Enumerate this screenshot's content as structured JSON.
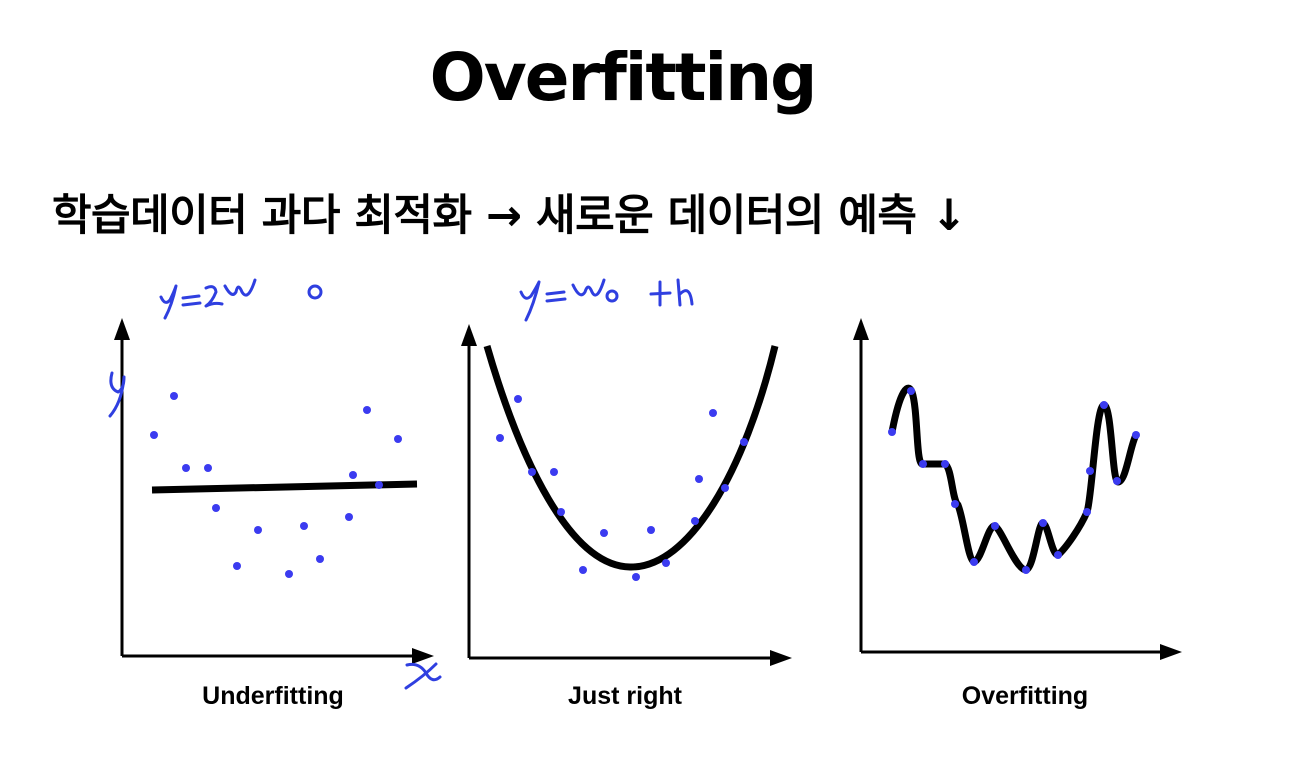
{
  "title": "Overfitting",
  "subtitle": "학습데이터 과다 최적화 → 새로운 데이터의 예측 ↓",
  "panels": [
    {
      "caption": "Underfitting",
      "annotations": [
        "y=w₀",
        "y",
        "x"
      ],
      "model": "horizontal line",
      "color_points": "#3b3bf0"
    },
    {
      "caption": "Just right",
      "annotations": [
        "y=w₀+h"
      ],
      "model": "quadratic curve",
      "color_points": "#3b3bf0"
    },
    {
      "caption": "Overfitting",
      "annotations": [],
      "model": "wiggly curve through all points",
      "color_points": "#3b3bf0"
    }
  ],
  "colors": {
    "ink": "#000000",
    "points": "#3b3bf0",
    "handwriting": "#2f3fe0"
  }
}
